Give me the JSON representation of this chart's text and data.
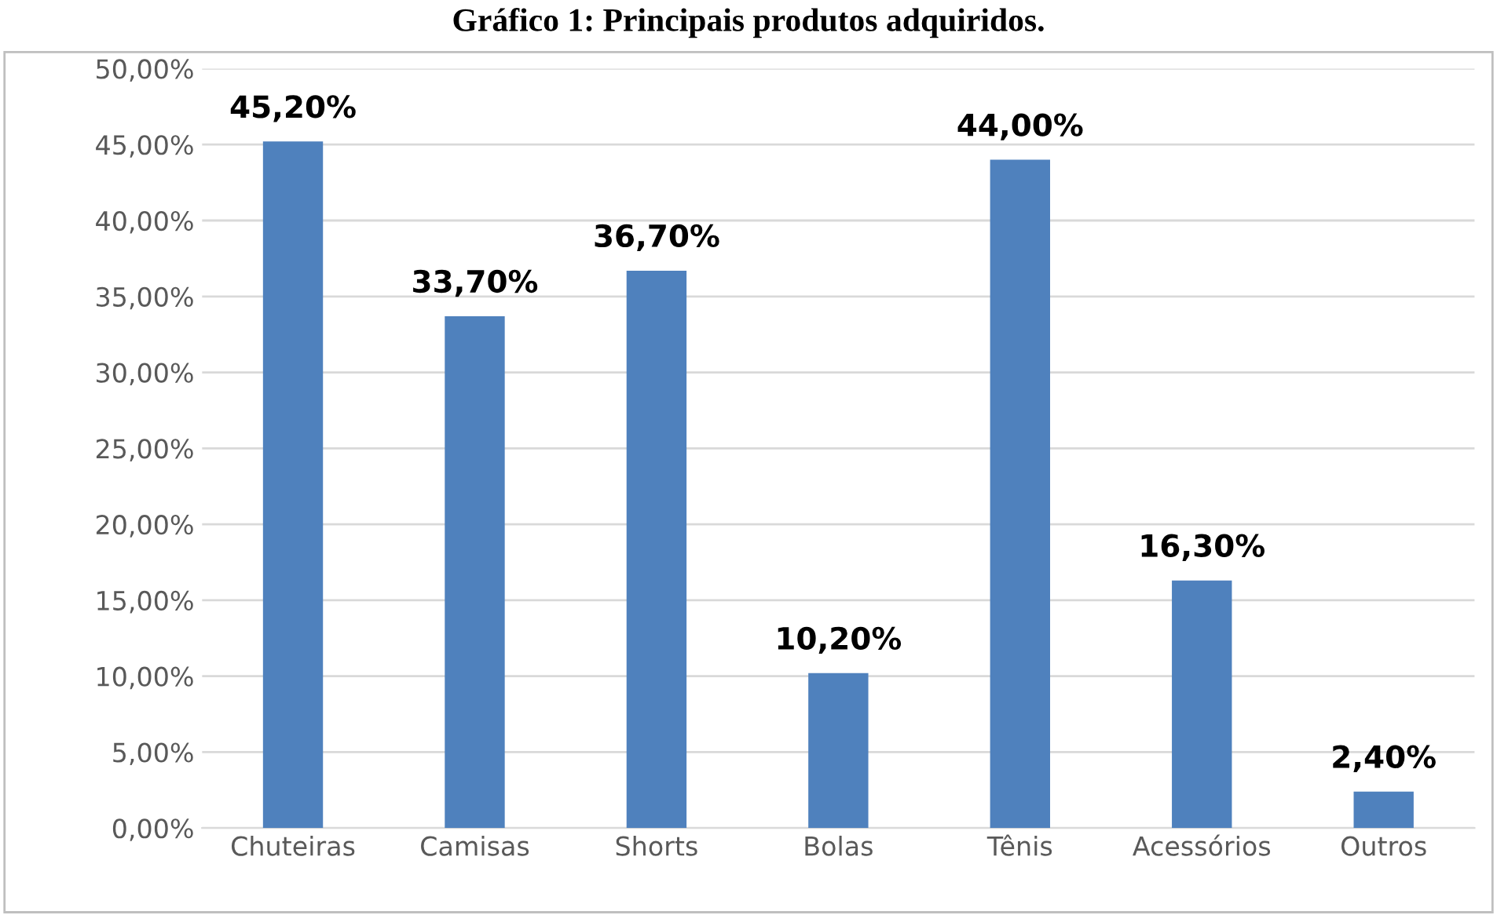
{
  "chart_data": {
    "type": "bar",
    "title": "Gráfico 1: Principais produtos adquiridos.",
    "categories": [
      "Chuteiras",
      "Camisas",
      "Shorts",
      "Bolas",
      "Tênis",
      "Acessórios",
      "Outros"
    ],
    "values": [
      45.2,
      33.7,
      36.7,
      10.2,
      44.0,
      16.3,
      2.4
    ],
    "value_labels": [
      "45,20%",
      "33,70%",
      "36,70%",
      "10,20%",
      "44,00%",
      "16,30%",
      "2,40%"
    ],
    "color": "#4f81bd",
    "ylim": [
      0,
      50
    ],
    "yticks": [
      {
        "value": 0,
        "label": "0,00%"
      },
      {
        "value": 5,
        "label": "5,00%"
      },
      {
        "value": 10,
        "label": "10,00%"
      },
      {
        "value": 15,
        "label": "15,00%"
      },
      {
        "value": 20,
        "label": "20,00%"
      },
      {
        "value": 25,
        "label": "25,00%"
      },
      {
        "value": 30,
        "label": "30,00%"
      },
      {
        "value": 35,
        "label": "35,00%"
      },
      {
        "value": 40,
        "label": "40,00%"
      },
      {
        "value": 45,
        "label": "45,00%"
      },
      {
        "value": 50,
        "label": "50,00%"
      }
    ],
    "grid": "y"
  }
}
